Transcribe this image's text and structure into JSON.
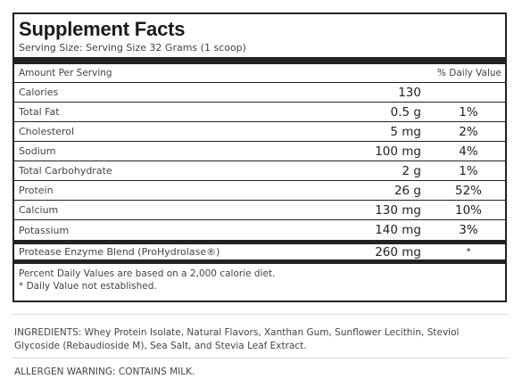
{
  "facts": {
    "title": "Supplement Facts",
    "serving_size": "Serving Size: Serving Size 32 Grams (1 scoop)",
    "header_left": "Amount Per Serving",
    "header_right": "% Daily Value",
    "rows": [
      {
        "name": "Calories",
        "amount": "130",
        "dv": ""
      },
      {
        "name": "Total Fat",
        "amount": "0.5 g",
        "dv": "1%"
      },
      {
        "name": "Cholesterol",
        "amount": "5 mg",
        "dv": "2%"
      },
      {
        "name": "Sodium",
        "amount": "100 mg",
        "dv": "4%"
      },
      {
        "name": "Total Carbohydrate",
        "amount": "2 g",
        "dv": "1%"
      },
      {
        "name": "Protein",
        "amount": "26 g",
        "dv": "52%"
      },
      {
        "name": "Calcium",
        "amount": "130 mg",
        "dv": "10%"
      },
      {
        "name": "Potassium",
        "amount": "140 mg",
        "dv": "3%"
      }
    ],
    "blend": {
      "name": "Protease Enzyme Blend (ProHydrolase®)",
      "amount": "260 mg",
      "dv": "*"
    },
    "footnote_1": "Percent Daily Values are based on a 2,000 calorie diet.",
    "footnote_2": "* Daily Value not established."
  },
  "ingredients": "INGREDIENTS: Whey Protein Isolate, Natural Flavors, Xanthan Gum, Sunflower Lecithin, Steviol Glycoside (Rebaudioside M), Sea Salt, and Stevia Leaf Extract.",
  "allergen": "ALLERGEN WARNING: CONTAINS MILK."
}
